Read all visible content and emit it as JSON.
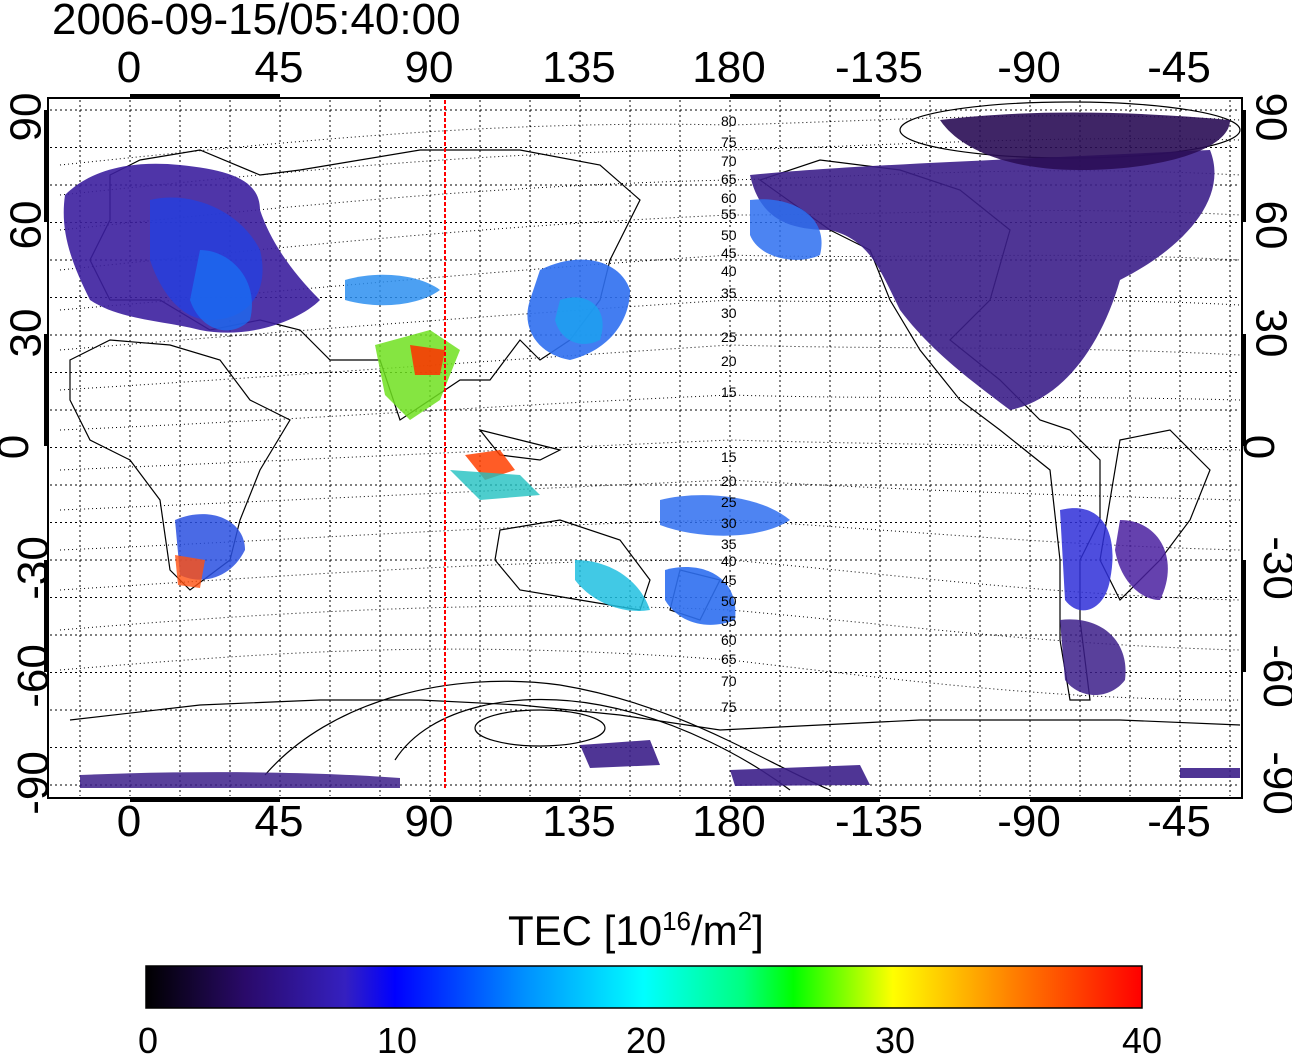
{
  "title": "2006-09-15/05:40:00",
  "map": {
    "x_ticks_top": [
      "0",
      "45",
      "90",
      "135",
      "180",
      "-135",
      "-90",
      "-45"
    ],
    "x_ticks_bottom": [
      "0",
      "45",
      "90",
      "135",
      "180",
      "-135",
      "-90",
      "-45"
    ],
    "y_ticks_left": [
      "90",
      "60",
      "30",
      "0",
      "-30",
      "-60",
      "-90"
    ],
    "y_ticks_right": [
      "90",
      "60",
      "30",
      "0",
      "-30",
      "-60",
      "-90"
    ],
    "contour_labels": [
      "80",
      "75",
      "70",
      "65",
      "60",
      "55",
      "50",
      "45",
      "40",
      "35",
      "30",
      "25",
      "20",
      "15",
      "15",
      "20",
      "25",
      "30",
      "35",
      "40",
      "45",
      "50",
      "55",
      "60",
      "65",
      "70",
      "75"
    ],
    "meridian_line_lon": 95,
    "meridian_line_color": "#ff0000",
    "grid": "dotted"
  },
  "colorbar": {
    "title_text": "TEC  [10",
    "title_sup1": "16",
    "title_mid": "/m",
    "title_sup2": "2",
    "title_end": "]",
    "tick_labels": [
      "0",
      "10",
      "20",
      "30",
      "40"
    ],
    "range": [
      0,
      40
    ],
    "colors": [
      "#000000",
      "#3a0a7a",
      "#2b2bc8",
      "#0000ff",
      "#0090ff",
      "#00ffff",
      "#00ff80",
      "#00ff00",
      "#c0ff00",
      "#ffff00",
      "#ff8000",
      "#ff0000"
    ]
  }
}
